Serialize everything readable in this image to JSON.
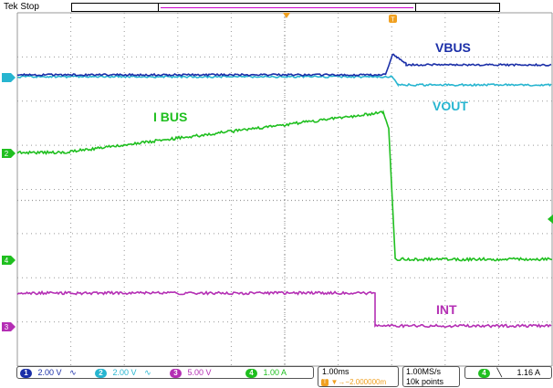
{
  "top_status": "Tek Stop",
  "channel_labels": {
    "vbus": "VBUS",
    "vout": "VOUT",
    "ibus": "I BUS",
    "int": "INT"
  },
  "channels": [
    {
      "num": "1",
      "scale": "2.00 V",
      "color": "#1b2fa8"
    },
    {
      "num": "2",
      "scale": "2.00 V",
      "color": "#27b5d0"
    },
    {
      "num": "3",
      "scale": "5.00 V",
      "color": "#b42fb4"
    },
    {
      "num": "4",
      "scale": "1.00 A",
      "color": "#1fbf1f"
    }
  ],
  "timebase": {
    "scale": "1.00ms",
    "trigger_pos": "▼→−2.000000m"
  },
  "acquisition": {
    "rate": "1.00MS/s",
    "points": "10k points"
  },
  "trigger": {
    "channel": "4",
    "slope_icon": "falling-edge-icon",
    "level": "1.16 A"
  },
  "colors": {
    "vbus": "#1b2fa8",
    "vout": "#27b5d0",
    "ibus": "#1fbf1f",
    "int": "#b42fb4",
    "trigger_marker": "#f0a020",
    "grid": "#999999"
  }
}
